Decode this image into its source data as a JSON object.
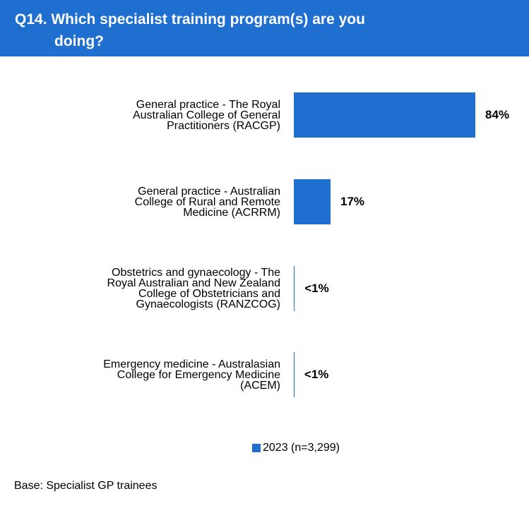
{
  "chart_data": {
    "type": "bar",
    "orientation": "horizontal",
    "title": "Q14. Which specialist training program(s) are you\ndoing?",
    "categories": [
      "General practice - The Royal\nAustralian College of General\nPractitioners (RACGP)",
      "General practice - Australian\nCollege of Rural and Remote\nMedicine (ACRRM)",
      "Obstetrics and gynaecology - The\nRoyal Australian and New Zealand\nCollege of Obstetricians and\nGynaecologists (RANZCOG)",
      "Emergency medicine - Australasian\nCollege for Emergency Medicine\n(ACEM)"
    ],
    "series": [
      {
        "name": "2023 (n=3,299)",
        "color": "#1f6fd1",
        "values": [
          84,
          17,
          0.4,
          0.3
        ],
        "value_labels": [
          "84%",
          "17%",
          "<1%",
          "<1%"
        ]
      }
    ],
    "xlim": [
      0,
      100
    ],
    "footnote": "Base: Specialist GP trainees"
  }
}
